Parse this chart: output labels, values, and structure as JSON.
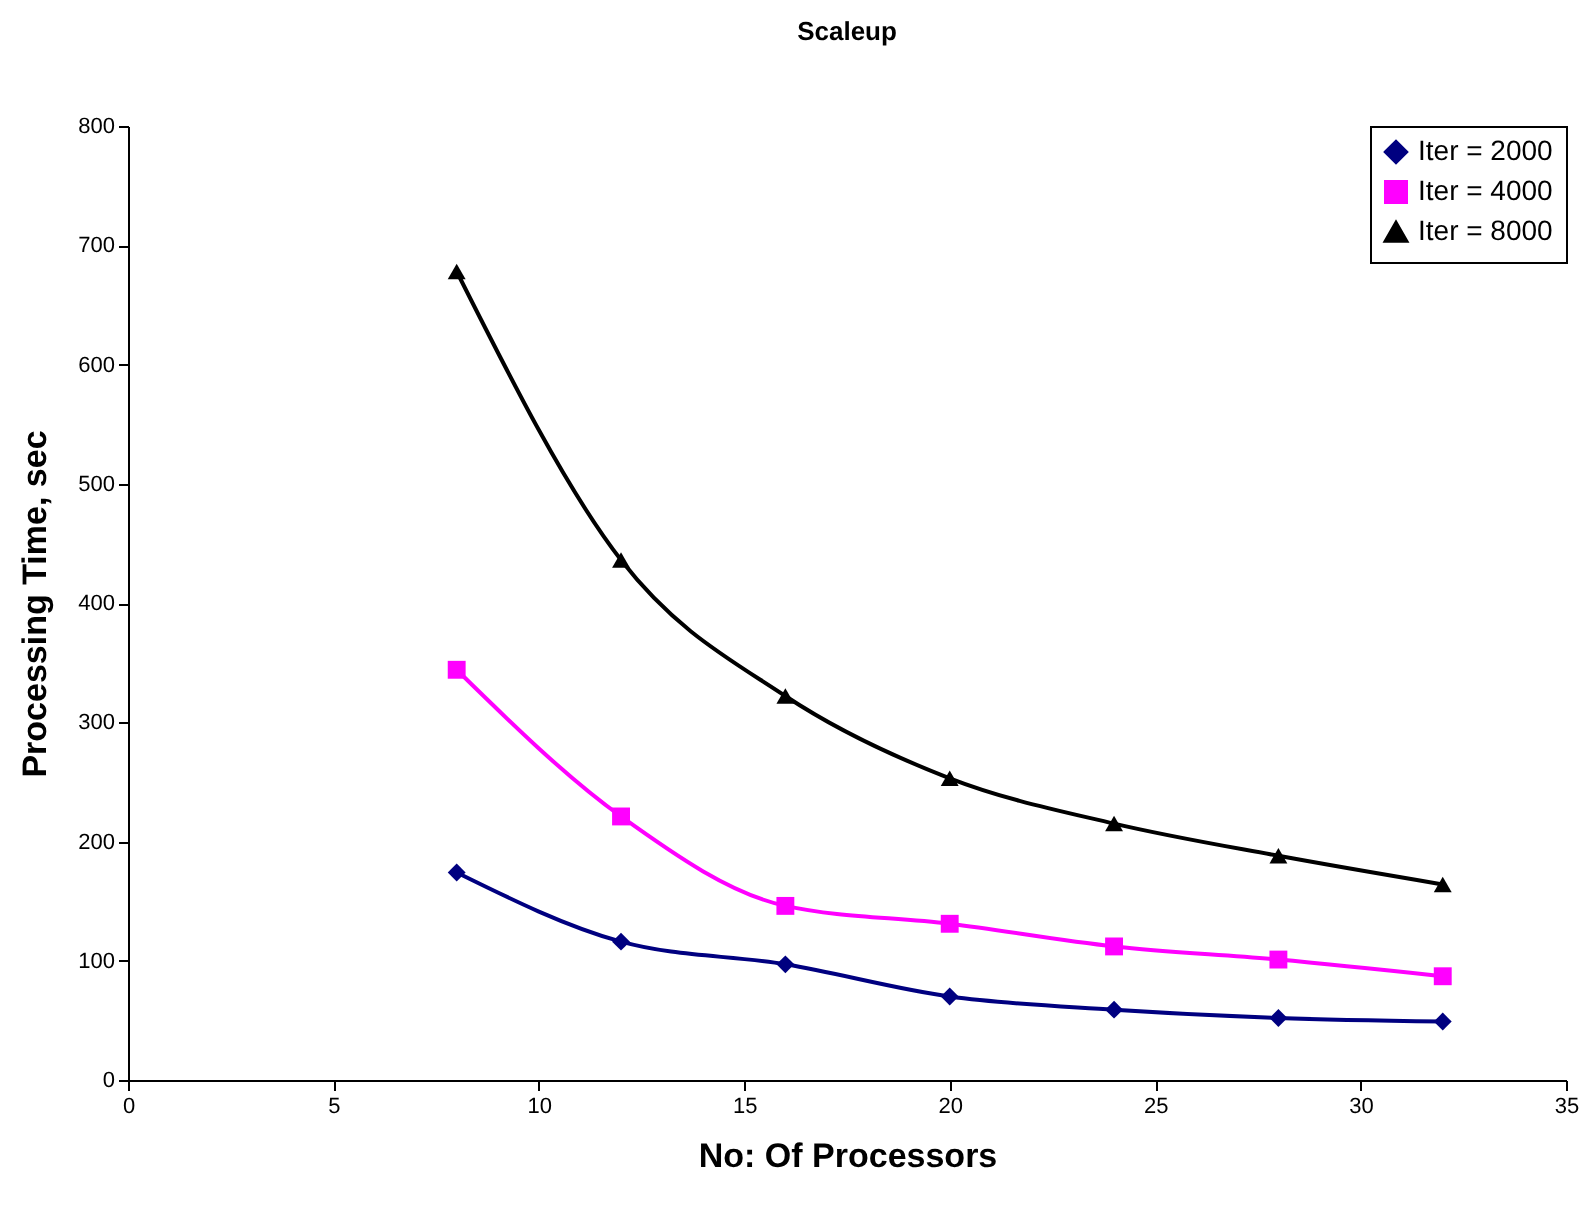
{
  "chart_data": {
    "type": "line",
    "title": "Scaleup",
    "xlabel": "No: Of Processors",
    "ylabel": "Processing Time, sec",
    "x": [
      8,
      12,
      16,
      20,
      24,
      28,
      32
    ],
    "series": [
      {
        "name": "Iter = 2000",
        "color": "#000080",
        "marker": "diamond",
        "values": [
          174,
          116,
          97,
          70,
          59,
          52,
          49
        ]
      },
      {
        "name": "Iter = 4000",
        "color": "#ff00ff",
        "marker": "square",
        "values": [
          344,
          221,
          146,
          131,
          112,
          101,
          87
        ]
      },
      {
        "name": "Iter = 8000",
        "color": "#000000",
        "marker": "triangle",
        "values": [
          678,
          436,
          322,
          253,
          215,
          188,
          164
        ]
      }
    ],
    "xlim": [
      0,
      35
    ],
    "xticks": [
      0,
      5,
      10,
      15,
      20,
      25,
      30,
      35
    ],
    "ylim": [
      0,
      800
    ],
    "yticks": [
      0,
      100,
      200,
      300,
      400,
      500,
      600,
      700,
      800
    ],
    "grid": false,
    "legend": "top right",
    "line_style": "solid"
  }
}
